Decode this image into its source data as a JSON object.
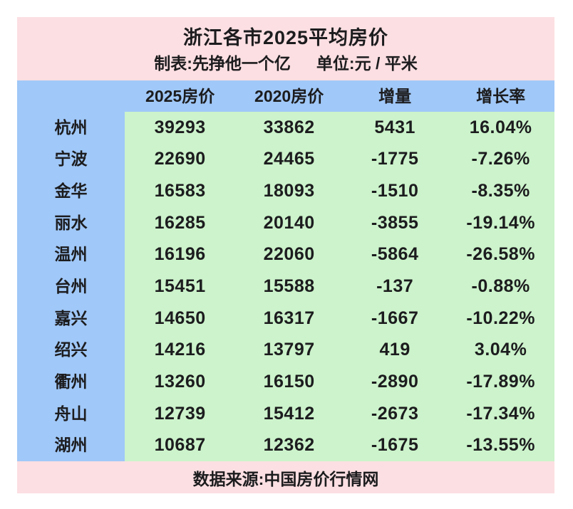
{
  "header": {
    "title": "浙江各市2025平均房价",
    "maker": "制表:先挣他一个亿",
    "unit": "单位:元 / 平米"
  },
  "footer": {
    "source": "数据来源:中国房价行情网"
  },
  "colors": {
    "header_pink": "#fcdfe2",
    "column_blue": "#a0c8f8",
    "data_green": "#ccf3cb",
    "text": "#1c1c1e"
  },
  "chart_data": {
    "type": "table",
    "title": "浙江各市2025平均房价",
    "unit": "元/平米",
    "columns": [
      "2025房价",
      "2020房价",
      "增量",
      "增长率"
    ],
    "rows": [
      {
        "city": "杭州",
        "price_2025": "39293",
        "price_2020": "33862",
        "change": "5431",
        "growth_rate": "16.04%"
      },
      {
        "city": "宁波",
        "price_2025": "22690",
        "price_2020": "24465",
        "change": "-1775",
        "growth_rate": "-7.26%"
      },
      {
        "city": "金华",
        "price_2025": "16583",
        "price_2020": "18093",
        "change": "-1510",
        "growth_rate": "-8.35%"
      },
      {
        "city": "丽水",
        "price_2025": "16285",
        "price_2020": "20140",
        "change": "-3855",
        "growth_rate": "-19.14%"
      },
      {
        "city": "温州",
        "price_2025": "16196",
        "price_2020": "22060",
        "change": "-5864",
        "growth_rate": "-26.58%"
      },
      {
        "city": "台州",
        "price_2025": "15451",
        "price_2020": "15588",
        "change": "-137",
        "growth_rate": "-0.88%"
      },
      {
        "city": "嘉兴",
        "price_2025": "14650",
        "price_2020": "16317",
        "change": "-1667",
        "growth_rate": "-10.22%"
      },
      {
        "city": "绍兴",
        "price_2025": "14216",
        "price_2020": "13797",
        "change": "419",
        "growth_rate": "3.04%"
      },
      {
        "city": "衢州",
        "price_2025": "13260",
        "price_2020": "16150",
        "change": "-2890",
        "growth_rate": "-17.89%"
      },
      {
        "city": "舟山",
        "price_2025": "12739",
        "price_2020": "15412",
        "change": "-2673",
        "growth_rate": "-17.34%"
      },
      {
        "city": "湖州",
        "price_2025": "10687",
        "price_2020": "12362",
        "change": "-1675",
        "growth_rate": "-13.55%"
      }
    ]
  }
}
